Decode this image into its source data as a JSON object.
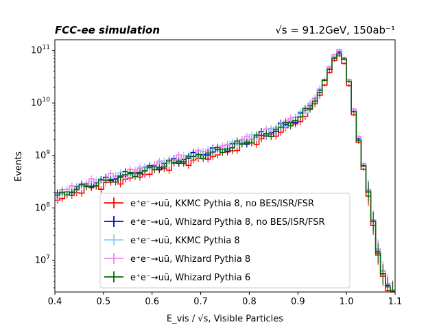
{
  "chart_data": {
    "type": "line",
    "title_left": "FCC-ee simulation",
    "title_right": "√s = 91.2GeV, 150ab⁻¹",
    "xlabel": "E_vis / √s, Visible Particles",
    "ylabel": "Events",
    "xlim": [
      0.4,
      1.1
    ],
    "ylim": [
      2500000,
      160000000000
    ],
    "yscale": "log",
    "x_ticks": [
      "0.4",
      "0.5",
      "0.6",
      "0.7",
      "0.8",
      "0.9",
      "1.0",
      "1.1"
    ],
    "y_ticks": [
      {
        "value": 10000000,
        "base": "10",
        "exp": "7"
      },
      {
        "value": 100000000,
        "base": "10",
        "exp": "8"
      },
      {
        "value": 1000000000,
        "base": "10",
        "exp": "9"
      },
      {
        "value": 10000000000,
        "base": "10",
        "exp": "10"
      },
      {
        "value": 100000000000,
        "base": "10",
        "exp": "11"
      }
    ],
    "legend_position": "lower-center",
    "grid": false,
    "series": [
      {
        "name": "e⁺e⁻→uū, KKMC Pythia 8, no BES/ISR/FSR",
        "color": "#ff0000",
        "offset": -0.06
      },
      {
        "name": "e⁺e⁻→uū, Whizard Pythia 8, no BES/ISR/FSR",
        "color": "#0000cc",
        "offset": 0.02
      },
      {
        "name": "e⁺e⁻→uū, KKMC Pythia 8",
        "color": "#87cefa",
        "offset": 0.04
      },
      {
        "name": "e⁺e⁻→uū, Whizard Pythia 8",
        "color": "#ee82ee",
        "offset": 0.05
      },
      {
        "name": "e⁺e⁻→uū, Whizard Pythia 6",
        "color": "#006400",
        "offset": 0.0
      }
    ],
    "shape": {
      "bin_width": 0.01,
      "log10_points": [
        [
          0.4,
          8.2
        ],
        [
          0.45,
          8.38
        ],
        [
          0.5,
          8.5
        ],
        [
          0.55,
          8.62
        ],
        [
          0.6,
          8.75
        ],
        [
          0.65,
          8.88
        ],
        [
          0.7,
          9.0
        ],
        [
          0.75,
          9.12
        ],
        [
          0.8,
          9.28
        ],
        [
          0.85,
          9.45
        ],
        [
          0.9,
          9.7
        ],
        [
          0.93,
          9.95
        ],
        [
          0.95,
          10.3
        ],
        [
          0.97,
          10.75
        ],
        [
          0.98,
          10.96
        ],
        [
          0.99,
          10.95
        ],
        [
          1.0,
          10.7
        ],
        [
          1.01,
          10.1
        ],
        [
          1.02,
          9.55
        ],
        [
          1.03,
          9.05
        ],
        [
          1.04,
          8.55
        ],
        [
          1.05,
          8.05
        ],
        [
          1.06,
          7.4
        ],
        [
          1.07,
          6.9
        ],
        [
          1.08,
          6.6
        ],
        [
          1.09,
          6.4
        ]
      ]
    }
  }
}
